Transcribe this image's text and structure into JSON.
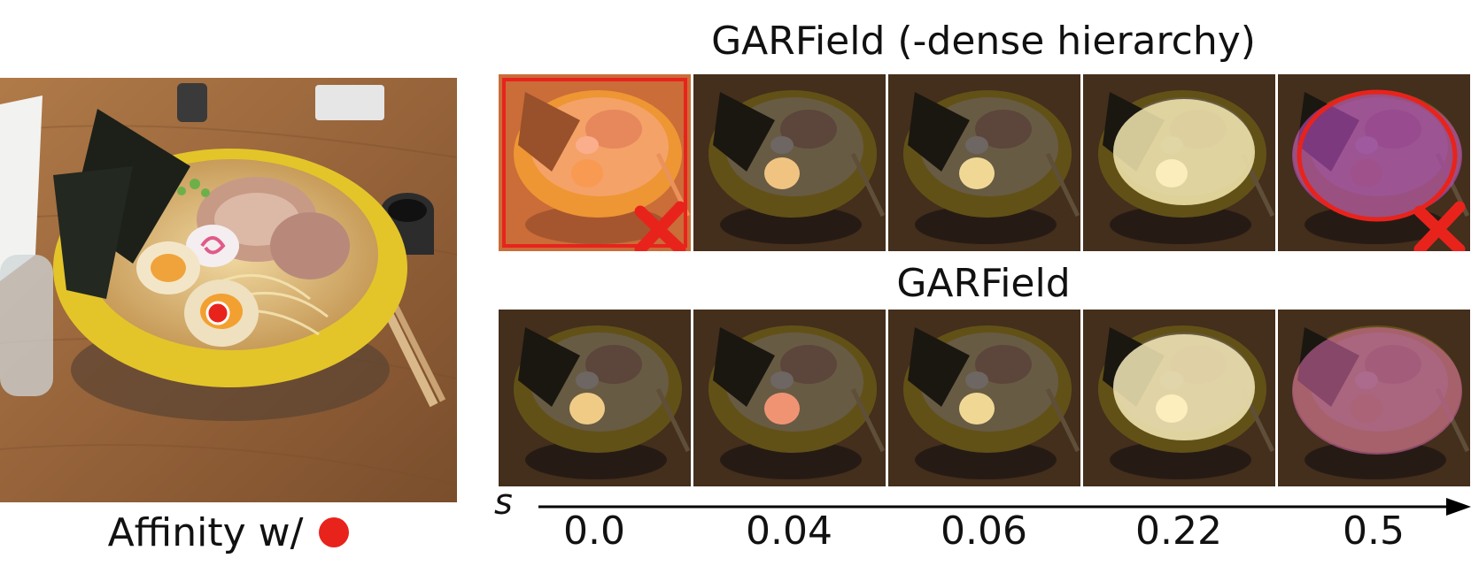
{
  "top_row": {
    "title": "GARField (-dense hierarchy)",
    "failure_panels": [
      0,
      4
    ]
  },
  "bottom_row": {
    "title": "GARField"
  },
  "axis": {
    "symbol": "s",
    "ticks": [
      "0.0",
      "0.04",
      "0.06",
      "0.22",
      "0.5"
    ]
  },
  "caption": {
    "text": "Affinity w/"
  },
  "colors": {
    "marker_red": "#e8231c",
    "bowl_yellow": "#e3c52a",
    "table_wood": "#9c6a3e"
  }
}
